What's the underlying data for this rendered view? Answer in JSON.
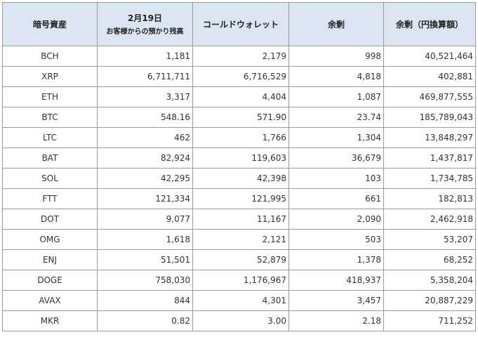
{
  "headers": {
    "asset": "暗号資産",
    "date": "2月19日",
    "customer_deposit": "お客様からの預かり残高",
    "cold_wallet": "コールドウォレット",
    "surplus": "余剰",
    "surplus_yen": "余剰（円換算額）"
  },
  "rows": [
    {
      "asset": "BCH",
      "deposit": "1,181",
      "cold": "2,179",
      "surplus": "998",
      "yen": "40,521,464"
    },
    {
      "asset": "XRP",
      "deposit": "6,711,711",
      "cold": "6,716,529",
      "surplus": "4,818",
      "yen": "402,881"
    },
    {
      "asset": "ETH",
      "deposit": "3,317",
      "cold": "4,404",
      "surplus": "1,087",
      "yen": "469,877,555"
    },
    {
      "asset": "BTC",
      "deposit": "548.16",
      "cold": "571.90",
      "surplus": "23.74",
      "yen": "185,789,043"
    },
    {
      "asset": "LTC",
      "deposit": "462",
      "cold": "1,766",
      "surplus": "1,304",
      "yen": "13,848,297"
    },
    {
      "asset": "BAT",
      "deposit": "82,924",
      "cold": "119,603",
      "surplus": "36,679",
      "yen": "1,437,817"
    },
    {
      "asset": "SOL",
      "deposit": "42,295",
      "cold": "42,398",
      "surplus": "103",
      "yen": "1,734,785"
    },
    {
      "asset": "FTT",
      "deposit": "121,334",
      "cold": "121,995",
      "surplus": "661",
      "yen": "182,813"
    },
    {
      "asset": "DOT",
      "deposit": "9,077",
      "cold": "11,167",
      "surplus": "2,090",
      "yen": "2,462,918"
    },
    {
      "asset": "OMG",
      "deposit": "1,618",
      "cold": "2,121",
      "surplus": "503",
      "yen": "53,207"
    },
    {
      "asset": "ENJ",
      "deposit": "51,501",
      "cold": "52,879",
      "surplus": "1,378",
      "yen": "68,252"
    },
    {
      "asset": "DOGE",
      "deposit": "758,030",
      "cold": "1,176,967",
      "surplus": "418,937",
      "yen": "5,358,204"
    },
    {
      "asset": "AVAX",
      "deposit": "844",
      "cold": "4,301",
      "surplus": "3,457",
      "yen": "20,887,229"
    },
    {
      "asset": "MKR",
      "deposit": "0.82",
      "cold": "3.00",
      "surplus": "2.18",
      "yen": "711,252"
    }
  ]
}
